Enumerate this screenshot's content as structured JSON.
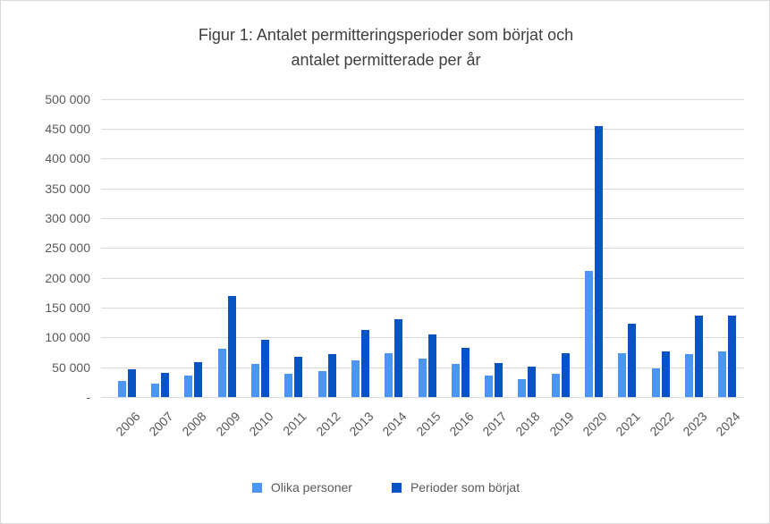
{
  "title": {
    "line1": "Figur 1: Antalet permitteringsperioder som börjat och",
    "line2": "antalet permitterade per år"
  },
  "colors": {
    "series_light": "#4b95f5",
    "series_dark": "#0853c4",
    "grid": "#d9d9d9",
    "axis_text": "#595959",
    "title_text": "#3f3f3f"
  },
  "chart_data": {
    "type": "bar",
    "title": "Figur 1: Antalet permitteringsperioder som börjat och antalet permitterade per år",
    "categories": [
      "2006",
      "2007",
      "2008",
      "2009",
      "2010",
      "2011",
      "2012",
      "2013",
      "2014",
      "2015",
      "2016",
      "2017",
      "2018",
      "2019",
      "2020",
      "2021",
      "2022",
      "2023",
      "2024"
    ],
    "series": [
      {
        "name": "Olika personer",
        "color": "#4b95f5",
        "values": [
          27000,
          22000,
          36000,
          81000,
          55000,
          39000,
          43000,
          61000,
          73000,
          65000,
          55000,
          36000,
          30000,
          39000,
          211000,
          74000,
          48000,
          72000,
          76000
        ]
      },
      {
        "name": "Perioder som börjat",
        "color": "#0853c4",
        "values": [
          46000,
          40000,
          59000,
          169000,
          96000,
          67000,
          72000,
          113000,
          130000,
          105000,
          82000,
          57000,
          51000,
          73000,
          455000,
          123000,
          77000,
          136000,
          136000
        ]
      }
    ],
    "ylim": [
      0,
      500000
    ],
    "ytick_step": 50000,
    "ytick_labels": [
      "-",
      "50 000",
      "100 000",
      "150 000",
      "200 000",
      "250 000",
      "300 000",
      "350 000",
      "400 000",
      "450 000",
      "500 000"
    ],
    "grid": true,
    "legend_position": "bottom"
  }
}
